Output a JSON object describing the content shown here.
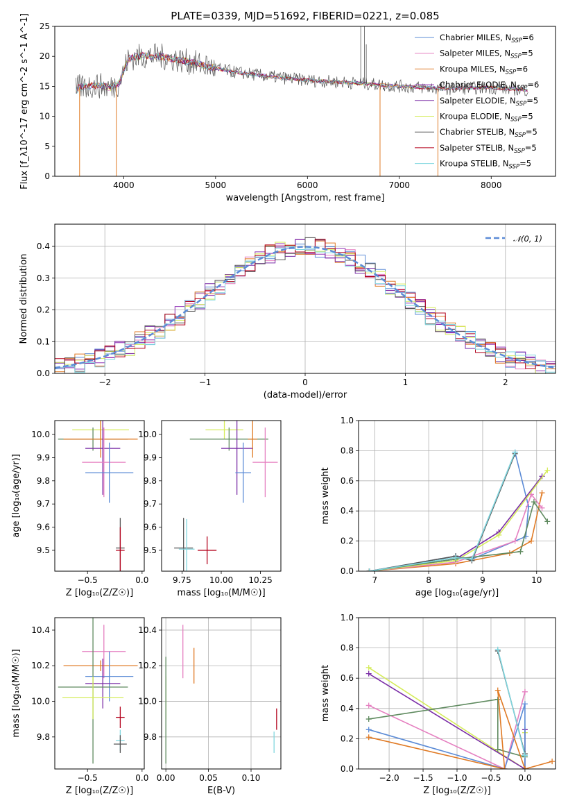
{
  "colors": {
    "Chabrier MILES": "#5b8bd6",
    "Salpeter MILES": "#e57fc0",
    "Kroupa MILES": "#e07a24",
    "Chabrier ELODIE": "#8e2fb4",
    "Salpeter ELODIE": "#7a2da6",
    "Kroupa ELODIE": "#d5ec5a",
    "Chabrier STELIB": "#555555",
    "Salpeter STELIB": "#b3001b",
    "Kroupa STELIB": "#7fd6df",
    "green": "#5f8a5f",
    "gauss": "#5b8bd6"
  },
  "chart_data": [
    {
      "id": "spectrum",
      "type": "line",
      "title": "PLATE=0339, MJD=51692, FIBERID=0221, z=0.085",
      "xlabel": "wavelength [Angstrom, rest frame]",
      "ylabel": "Flux [f_λ10^-17 erg cm^-2 s^-1 A^-1]",
      "xlim": [
        3250,
        8700
      ],
      "ylim": [
        0,
        25
      ],
      "xticks": [
        "4000",
        "5000",
        "6000",
        "7000",
        "8000"
      ],
      "yticks": [
        "0",
        "5",
        "10",
        "15",
        "20",
        "25"
      ],
      "legend_position": "upper right",
      "legend": [
        {
          "label": "Chabrier MILES, N",
          "sub": "SSP",
          "tail": "=6"
        },
        {
          "label": "Salpeter MILES, N",
          "sub": "SSP",
          "tail": "=5"
        },
        {
          "label": "Kroupa MILES, N",
          "sub": "SSP",
          "tail": "=6"
        },
        {
          "label": "Chabrier ELODIE, N",
          "sub": "SSP",
          "tail": "=6"
        },
        {
          "label": "Salpeter ELODIE, N",
          "sub": "SSP",
          "tail": "=5"
        },
        {
          "label": "Kroupa ELODIE, N",
          "sub": "SSP",
          "tail": "=5"
        },
        {
          "label": "Chabrier STELIB, N",
          "sub": "SSP",
          "tail": "=5"
        },
        {
          "label": "Salpeter STELIB, N",
          "sub": "SSP",
          "tail": "=5"
        },
        {
          "label": "Kroupa STELIB, N",
          "sub": "SSP",
          "tail": "=5"
        }
      ],
      "continuum": [
        [
          3500,
          14.8
        ],
        [
          3700,
          15.2
        ],
        [
          3850,
          14.8
        ],
        [
          3950,
          15.5
        ],
        [
          4050,
          19.6
        ],
        [
          4200,
          20.1
        ],
        [
          4400,
          20.0
        ],
        [
          4600,
          19.4
        ],
        [
          4800,
          18.8
        ],
        [
          5000,
          18.0
        ],
        [
          5200,
          17.4
        ],
        [
          5500,
          16.8
        ],
        [
          6000,
          16.0
        ],
        [
          6500,
          15.6
        ],
        [
          7000,
          15.0
        ],
        [
          7500,
          14.6
        ],
        [
          8000,
          14.8
        ],
        [
          8400,
          14.4
        ]
      ],
      "drops": [
        [
          3520,
          0
        ],
        [
          3920,
          0
        ],
        [
          6790,
          0
        ],
        [
          7420,
          0
        ]
      ],
      "spikes": [
        [
          6580,
          25
        ],
        [
          6620,
          25
        ],
        [
          6640,
          22
        ]
      ]
    },
    {
      "id": "residuals",
      "type": "histogram",
      "xlabel": "(data-model)/error",
      "ylabel": "Normed distribution",
      "xlim": [
        -2.5,
        2.5
      ],
      "ylim": [
        0,
        0.47
      ],
      "xticks": [
        "−2",
        "−1",
        "0",
        "1",
        "2"
      ],
      "yticks": [
        "0.0",
        "0.1",
        "0.2",
        "0.3",
        "0.4"
      ],
      "legend": "𝒩(0, 1)",
      "legend_position": "upper right",
      "gauss_line": "N(0,1) dashed"
    },
    {
      "id": "age-vs-Z",
      "type": "scatter",
      "xlabel": "Z [log₁₀(Z/Z☉)]",
      "ylabel": "age  [log₁₀(age/yr)]",
      "xlim": [
        -0.8,
        0.02
      ],
      "ylim": [
        9.41,
        10.06
      ],
      "xticks": [
        "−0.5",
        "0.0"
      ],
      "yticks": [
        "9.5",
        "9.6",
        "9.7",
        "9.8",
        "9.9",
        "10.0"
      ],
      "points": [
        {
          "series": "Kroupa ELODIE",
          "x": -0.38,
          "y": 10.02,
          "xerr": 0.26,
          "yerr": 0.04
        },
        {
          "series": "green",
          "x": -0.45,
          "y": 9.98,
          "xerr": 0.32,
          "yerr": 0.05
        },
        {
          "series": "Kroupa MILES",
          "x": -0.38,
          "y": 9.98,
          "xerr": 0.34,
          "yerr": 0.08
        },
        {
          "series": "Salpeter ELODIE",
          "x": -0.36,
          "y": 9.94,
          "xerr": 0.16,
          "yerr": 0.2
        },
        {
          "series": "Salpeter MILES",
          "x": -0.35,
          "y": 9.88,
          "xerr": 0.2,
          "yerr": 0.15
        },
        {
          "series": "Chabrier MILES",
          "x": -0.3,
          "y": 9.835,
          "xerr": 0.22,
          "yerr": 0.13
        },
        {
          "series": "Chabrier STELIB",
          "x": -0.2,
          "y": 9.51,
          "xerr": 0.04,
          "yerr": 0.13
        },
        {
          "series": "Salpeter STELIB",
          "x": -0.2,
          "y": 9.5,
          "xerr": 0.04,
          "yerr": 0.1
        }
      ]
    },
    {
      "id": "age-vs-mass",
      "type": "scatter",
      "xlabel": "mass [log₁₀(M/M☉)]",
      "ylabel": "",
      "xlim": [
        9.62,
        10.38
      ],
      "ylim": [
        9.41,
        10.06
      ],
      "xticks": [
        "9.75",
        "10.00",
        "10.25"
      ],
      "yticks": [
        "9.5",
        "9.6",
        "9.7",
        "9.8",
        "9.9",
        "10.0"
      ],
      "points": [
        {
          "series": "Kroupa ELODIE",
          "x": 10.02,
          "y": 10.02,
          "xerr": 0.12,
          "yerr": 0.04
        },
        {
          "series": "green",
          "x": 10.05,
          "y": 9.98,
          "xerr": 0.25,
          "yerr": 0.05
        },
        {
          "series": "Kroupa MILES",
          "x": 10.2,
          "y": 9.98,
          "xerr": 0.03,
          "yerr": 0.08
        },
        {
          "series": "Salpeter ELODIE",
          "x": 10.1,
          "y": 9.94,
          "xerr": 0.1,
          "yerr": 0.2
        },
        {
          "series": "Salpeter MILES",
          "x": 10.28,
          "y": 9.88,
          "xerr": 0.08,
          "yerr": 0.15
        },
        {
          "series": "Chabrier MILES",
          "x": 10.14,
          "y": 9.835,
          "xerr": 0.05,
          "yerr": 0.13
        },
        {
          "series": "Chabrier STELIB",
          "x": 9.76,
          "y": 9.51,
          "xerr": 0.06,
          "yerr": 0.13
        },
        {
          "series": "Kroupa STELIB",
          "x": 9.78,
          "y": 9.505,
          "xerr": 0.05,
          "yerr": 0.13
        },
        {
          "series": "Salpeter STELIB",
          "x": 9.91,
          "y": 9.5,
          "xerr": 0.06,
          "yerr": 0.06
        }
      ]
    },
    {
      "id": "weight-vs-age",
      "type": "line",
      "xlabel": "age  [log₁₀(age/yr)]",
      "ylabel": "mass weight",
      "xlim": [
        6.7,
        10.35
      ],
      "ylim": [
        0,
        1.0
      ],
      "xticks": [
        "7",
        "8",
        "9",
        "10"
      ],
      "yticks": [
        "0.0",
        "0.2",
        "0.4",
        "0.6",
        "0.8",
        "1.0"
      ],
      "series": [
        {
          "name": "Chabrier MILES",
          "points": [
            [
              6.9,
              0.0
            ],
            [
              8.5,
              0.1
            ],
            [
              8.8,
              0.08
            ],
            [
              9.8,
              0.23
            ],
            [
              9.85,
              0.43
            ],
            [
              9.6,
              0.79
            ]
          ]
        },
        {
          "name": "Kroupa MILES",
          "points": [
            [
              6.9,
              0.0
            ],
            [
              8.5,
              0.05
            ],
            [
              9.5,
              0.12
            ],
            [
              9.9,
              0.2
            ],
            [
              10.1,
              0.52
            ]
          ]
        },
        {
          "name": "Salpeter MILES",
          "points": [
            [
              6.9,
              0.0
            ],
            [
              8.5,
              0.06
            ],
            [
              9.6,
              0.2
            ],
            [
              9.9,
              0.51
            ],
            [
              10.1,
              0.42
            ]
          ]
        },
        {
          "name": "Salpeter ELODIE",
          "points": [
            [
              6.9,
              0.0
            ],
            [
              8.5,
              0.08
            ],
            [
              9.3,
              0.26
            ],
            [
              10.1,
              0.63
            ]
          ]
        },
        {
          "name": "Kroupa ELODIE",
          "points": [
            [
              6.9,
              0.0
            ],
            [
              8.5,
              0.07
            ],
            [
              9.3,
              0.24
            ],
            [
              10.2,
              0.67
            ]
          ]
        },
        {
          "name": "green",
          "points": [
            [
              6.9,
              0.0
            ],
            [
              8.5,
              0.08
            ],
            [
              9.7,
              0.13
            ],
            [
              9.95,
              0.46
            ],
            [
              10.2,
              0.33
            ]
          ]
        },
        {
          "name": "Chabrier STELIB",
          "points": [
            [
              6.9,
              0.0
            ],
            [
              8.5,
              0.1
            ],
            [
              8.8,
              0.07
            ],
            [
              9.6,
              0.78
            ]
          ]
        },
        {
          "name": "Kroupa STELIB",
          "points": [
            [
              6.9,
              0.0
            ],
            [
              8.5,
              0.09
            ],
            [
              8.8,
              0.08
            ],
            [
              9.6,
              0.79
            ]
          ]
        }
      ]
    },
    {
      "id": "mass-vs-Z",
      "type": "scatter",
      "xlabel": "Z [log₁₀(Z/Z☉)]",
      "ylabel": "mass [log₁₀(M/M☉)]",
      "xlim": [
        -0.8,
        0.02
      ],
      "ylim": [
        9.62,
        10.47
      ],
      "xticks": [
        "−0.5",
        "0.0"
      ],
      "yticks": [
        "9.8",
        "10.0",
        "10.2",
        "10.4"
      ],
      "points": [
        {
          "series": "Salpeter MILES",
          "x": -0.35,
          "y": 10.28,
          "xerr": 0.2,
          "yerr": 0.15
        },
        {
          "series": "Kroupa MILES",
          "x": -0.38,
          "y": 10.2,
          "xerr": 0.34,
          "yerr": 0.03
        },
        {
          "series": "Chabrier MILES",
          "x": -0.3,
          "y": 10.14,
          "xerr": 0.22,
          "yerr": 0.14
        },
        {
          "series": "Salpeter ELODIE",
          "x": -0.36,
          "y": 10.1,
          "xerr": 0.16,
          "yerr": 0.14
        },
        {
          "series": "green",
          "x": -0.45,
          "y": 10.08,
          "xerr": 0.32,
          "yerr": 0.43
        },
        {
          "series": "Kroupa ELODIE",
          "x": -0.45,
          "y": 10.02,
          "xerr": 0.28,
          "yerr": 0.12
        },
        {
          "series": "Salpeter STELIB",
          "x": -0.2,
          "y": 9.91,
          "xerr": 0.04,
          "yerr": 0.06
        },
        {
          "series": "Kroupa STELIB",
          "x": -0.2,
          "y": 9.78,
          "xerr": 0.04,
          "yerr": 0.06
        },
        {
          "series": "Chabrier STELIB",
          "x": -0.2,
          "y": 9.76,
          "xerr": 0.06,
          "yerr": 0.05
        }
      ]
    },
    {
      "id": "mass-vs-EBV",
      "type": "scatter",
      "xlabel": "E(B-V)",
      "ylabel": "",
      "xlim": [
        -0.005,
        0.135
      ],
      "ylim": [
        9.62,
        10.47
      ],
      "xticks": [
        "0.00",
        "0.05",
        "0.10"
      ],
      "yticks": [
        "9.8",
        "10.0",
        "10.2",
        "10.4"
      ],
      "points": [
        {
          "series": "Salpeter MILES",
          "x": 0.02,
          "y": 10.28,
          "xerr": 0.0,
          "yerr": 0.15
        },
        {
          "series": "Kroupa MILES",
          "x": 0.033,
          "y": 10.2,
          "xerr": 0.0,
          "yerr": 0.1
        },
        {
          "series": "Kroupa ELODIE",
          "x": 0.0,
          "y": 10.02,
          "xerr": 0.0,
          "yerr": 0.12
        },
        {
          "series": "green",
          "x": 0.0,
          "y": 9.95,
          "xerr": 0.0,
          "yerr": 0.3
        },
        {
          "series": "Salpeter STELIB",
          "x": 0.13,
          "y": 9.9,
          "xerr": 0.0,
          "yerr": 0.06
        },
        {
          "series": "Kroupa STELIB",
          "x": 0.127,
          "y": 9.77,
          "xerr": 0.0,
          "yerr": 0.06
        }
      ]
    },
    {
      "id": "weight-vs-Z",
      "type": "line",
      "xlabel": "Z [log₁₀(Z/Z☉)]",
      "ylabel": "mass weight",
      "xlim": [
        -2.45,
        0.45
      ],
      "ylim": [
        0,
        1.0
      ],
      "xticks": [
        "−2.0",
        "−1.5",
        "−1.0",
        "−0.5",
        "0.0"
      ],
      "yticks": [
        "0.0",
        "0.2",
        "0.4",
        "0.6",
        "0.8",
        "1.0"
      ],
      "series": [
        {
          "name": "Kroupa ELODIE",
          "points": [
            [
              -2.3,
              0.67
            ],
            [
              0.0,
              0.0
            ],
            [
              0.0,
              0.24
            ]
          ]
        },
        {
          "name": "Salpeter ELODIE",
          "points": [
            [
              -2.3,
              0.63
            ],
            [
              0.0,
              0.0
            ],
            [
              0.0,
              0.26
            ]
          ]
        },
        {
          "name": "Salpeter MILES",
          "points": [
            [
              -2.3,
              0.42
            ],
            [
              -0.3,
              0.0
            ],
            [
              0.0,
              0.51
            ]
          ]
        },
        {
          "name": "green",
          "points": [
            [
              -2.3,
              0.33
            ],
            [
              -0.4,
              0.46
            ],
            [
              -0.4,
              0.13
            ],
            [
              0.0,
              0.08
            ]
          ]
        },
        {
          "name": "Chabrier MILES",
          "points": [
            [
              -2.3,
              0.26
            ],
            [
              -0.3,
              0.0
            ],
            [
              0.0,
              0.43
            ],
            [
              0.0,
              0.0
            ]
          ]
        },
        {
          "name": "Kroupa MILES",
          "points": [
            [
              -2.3,
              0.21
            ],
            [
              -0.3,
              0.0
            ],
            [
              -0.4,
              0.52
            ],
            [
              0.0,
              0.0
            ],
            [
              0.4,
              0.05
            ]
          ]
        },
        {
          "name": "Chabrier STELIB",
          "points": [
            [
              -0.4,
              0.78
            ],
            [
              0.0,
              0.1
            ]
          ]
        },
        {
          "name": "Kroupa STELIB",
          "points": [
            [
              -0.4,
              0.79
            ],
            [
              0.0,
              0.09
            ]
          ]
        }
      ]
    }
  ]
}
